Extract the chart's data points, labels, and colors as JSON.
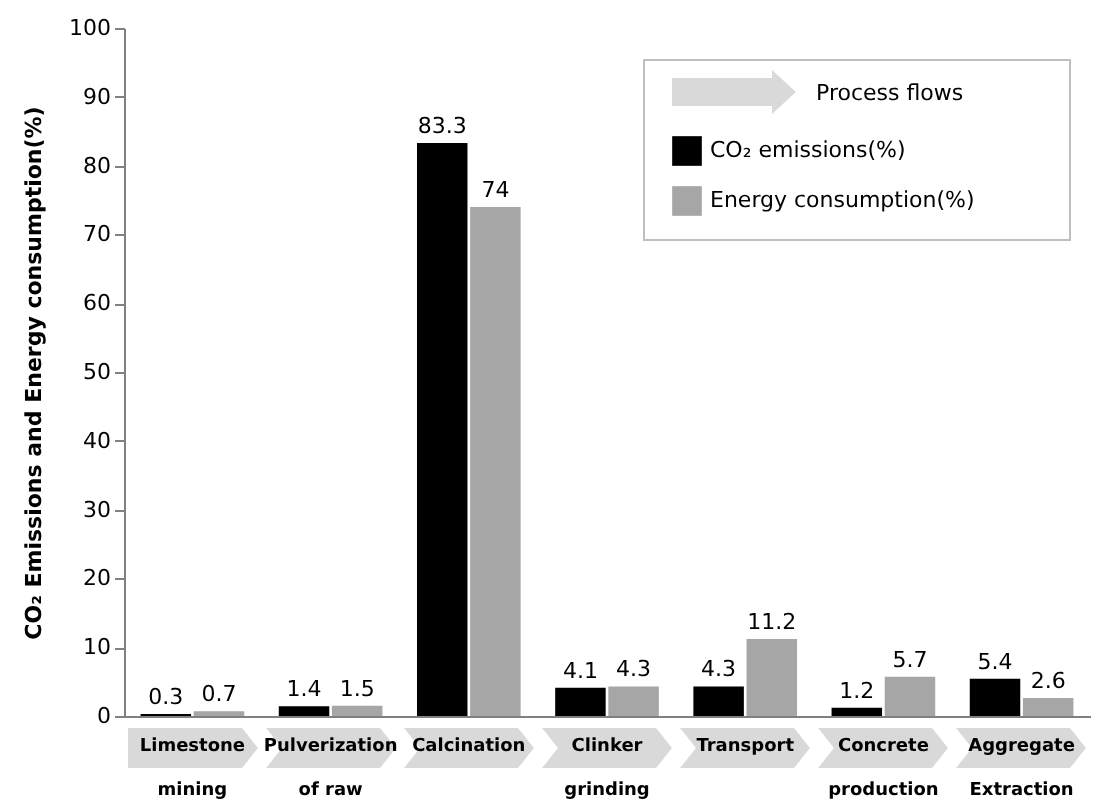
{
  "chart_data": {
    "type": "bar",
    "ylabel": "CO₂ Emissions and Energy consumption(%)",
    "categories": [
      "Limestone mining",
      "Pulverization of raw",
      "Calcination",
      "Clinker grinding",
      "Transport",
      "Concrete production",
      "Aggregate Extraction"
    ],
    "series": [
      {
        "name": "CO₂ emissions(%)",
        "color": "#000000",
        "values": [
          0.3,
          1.4,
          83.3,
          4.1,
          4.3,
          1.2,
          5.4
        ]
      },
      {
        "name": "Energy consumption(%)",
        "color": "#a6a6a6",
        "values": [
          0.7,
          1.5,
          74,
          4.3,
          11.2,
          5.7,
          2.6
        ]
      }
    ],
    "ylim": [
      0,
      100
    ],
    "yticks": [
      0,
      10,
      20,
      30,
      40,
      50,
      60,
      70,
      80,
      90,
      100
    ],
    "grid": false,
    "legend": "top right",
    "data_labels": true,
    "annotations": [
      "Process flows"
    ]
  }
}
